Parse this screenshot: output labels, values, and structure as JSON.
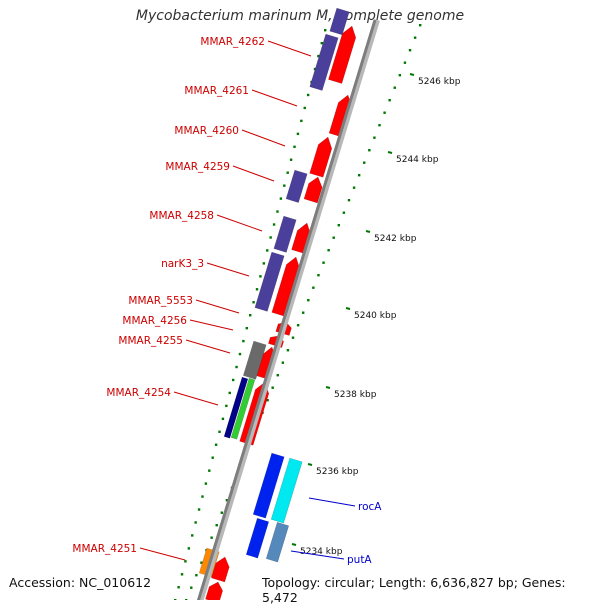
{
  "title": "Mycobacterium marinum M, complete genome",
  "footer": {
    "accession": "Accession: NC_010612",
    "topology": "Topology: circular; Length: 6,636,827 bp; Genes: 5,472"
  },
  "colors": {
    "cds_forward": "#ff0000",
    "cds_reverse": "#4a3f9a",
    "backbone": "#909090",
    "tick": "#007700",
    "gene_label": "#cc0000",
    "feature_label": "#0000cc",
    "cyan_feature": "#00e8f0",
    "blue_feature": "#0022ee",
    "steel_feature": "#5588bb",
    "grey_feature": "#6a6a6a",
    "orange_feature": "#ff8800",
    "green_feature": "#33cc33",
    "navy_feature": "#000088"
  },
  "scale_labels": [
    {
      "kbp": 5246,
      "text": "5246 kbp"
    },
    {
      "kbp": 5244,
      "text": "5244 kbp"
    },
    {
      "kbp": 5242,
      "text": "5242 kbp"
    },
    {
      "kbp": 5240,
      "text": "5240 kbp"
    },
    {
      "kbp": 5238,
      "text": "5238 kbp"
    },
    {
      "kbp": 5236,
      "text": "5236 kbp"
    },
    {
      "kbp": 5234,
      "text": "5234 kbp"
    }
  ],
  "gene_labels": [
    {
      "name": "MMAR_4262"
    },
    {
      "name": "MMAR_4261"
    },
    {
      "name": "MMAR_4260"
    },
    {
      "name": "MMAR_4259"
    },
    {
      "name": "MMAR_4258"
    },
    {
      "name": "narK3_3"
    },
    {
      "name": "MMAR_5553"
    },
    {
      "name": "MMAR_4256"
    },
    {
      "name": "MMAR_4255"
    },
    {
      "name": "MMAR_4254"
    },
    {
      "name": "MMAR_4251"
    }
  ],
  "feature_labels": [
    {
      "name": "rocA"
    },
    {
      "name": "putA"
    }
  ]
}
